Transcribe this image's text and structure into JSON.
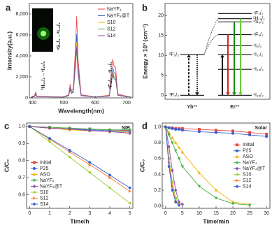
{
  "chart_data": [
    {
      "type": "line",
      "label": "a",
      "x_label": "Wavelength(nm)",
      "y_label": "Intensity(a.u.)",
      "legend": "upper right",
      "x": [
        395,
        406,
        410,
        414,
        500,
        515,
        520,
        524,
        530,
        537,
        541,
        545,
        555,
        600,
        645,
        652,
        656,
        660,
        665,
        672,
        700,
        715
      ],
      "xlim": [
        390,
        720
      ],
      "xticks": [
        400,
        500,
        600,
        700
      ],
      "ylim": [
        0,
        9000
      ],
      "yticks": [
        0,
        {
          "value": 2000,
          "label": "2,000"
        },
        {
          "value": 4000,
          "label": "4,000"
        },
        {
          "value": 6000,
          "label": "6,000"
        },
        {
          "value": 8000,
          "label": "8,000"
        }
      ],
      "annotations": [
        "⁴S₃/₂→⁴I₁₅/₂",
        "²H₁₁/₂→⁴I₁₅/₂",
        "⁴F₉/₂→⁴I₁₅/₂"
      ],
      "series": [
        {
          "name": "NaYF₄",
          "color": "#e8403a",
          "values": [
            80,
            200,
            550,
            150,
            100,
            300,
            1300,
            700,
            900,
            4800,
            7800,
            3800,
            300,
            100,
            250,
            2600,
            3700,
            3000,
            2900,
            400,
            150,
            100
          ]
        },
        {
          "name": "NaYF₄@T",
          "color": "#3a5fcd",
          "values": [
            70,
            150,
            420,
            120,
            90,
            250,
            1000,
            550,
            700,
            3800,
            6100,
            3000,
            250,
            90,
            200,
            2000,
            2900,
            2400,
            2300,
            300,
            120,
            90
          ]
        },
        {
          "name": "S10",
          "color": "#f0b400",
          "values": [
            60,
            130,
            360,
            110,
            80,
            220,
            850,
            480,
            600,
            3300,
            5300,
            2600,
            220,
            80,
            180,
            1700,
            2500,
            2100,
            2000,
            260,
            110,
            80
          ]
        },
        {
          "name": "S12",
          "color": "#3cb043",
          "values": [
            50,
            110,
            300,
            100,
            70,
            190,
            750,
            420,
            520,
            2900,
            4600,
            2300,
            200,
            70,
            160,
            1500,
            2200,
            1800,
            1750,
            230,
            100,
            70
          ]
        },
        {
          "name": "S14",
          "color": "#8e44ad",
          "values": [
            55,
            120,
            330,
            105,
            75,
            200,
            800,
            450,
            560,
            3100,
            4900,
            2450,
            210,
            75,
            170,
            1600,
            2350,
            1950,
            1850,
            240,
            105,
            75
          ]
        }
      ]
    },
    {
      "type": "energy-levels",
      "label": "b",
      "y_label": "Energy × 10³ (cm⁻¹)",
      "ylim": [
        -1,
        23
      ],
      "yticks": [
        0,
        5,
        10,
        15,
        20
      ],
      "ions": [
        {
          "name": "Yb³⁺",
          "levels": [
            {
              "label": "²F₇/₂",
              "energy": 0
            },
            {
              "label": "²F₅/₂",
              "energy": 10.2
            }
          ]
        },
        {
          "name": "Er³⁺",
          "levels": [
            {
              "label": "⁴I₁₅/₂",
              "energy": 0
            },
            {
              "label": "⁴I₁₃/₂",
              "energy": 6.5
            },
            {
              "label": "⁴I₁₁/₂",
              "energy": 10.2
            },
            {
              "label": "⁴I₉/₂",
              "energy": 12.4
            },
            {
              "label": "⁴F₉/₂",
              "energy": 15.2,
              "emission": "#e02020"
            },
            {
              "label": "⁴S₃/₂",
              "energy": 18.4,
              "emission": "#118a11"
            },
            {
              "label": "²H₁₁/₂",
              "energy": 19.2,
              "emission": "#66cc33"
            },
            {
              "label": "⁴F₇/₂",
              "energy": 20.5
            }
          ]
        }
      ]
    },
    {
      "type": "line",
      "label": "c",
      "title": "NIR",
      "x_label": "Time/h",
      "y_label": "C/C₀",
      "legend": "lower left",
      "x": [
        0,
        1,
        2,
        3,
        4,
        5
      ],
      "xlim": [
        -0.15,
        5.15
      ],
      "xticks": [
        0,
        1,
        2,
        3,
        4,
        5
      ],
      "ylim": [
        0.52,
        1.02
      ],
      "yticks": [
        0.6,
        0.7,
        0.8,
        0.9,
        {
          "value": 1,
          "label": "1.0"
        }
      ],
      "series": [
        {
          "name": "Initial",
          "color": "#e8403a",
          "marker": "square",
          "values": [
            1,
            0.995,
            0.99,
            0.985,
            0.98,
            0.975
          ]
        },
        {
          "name": "P25",
          "color": "#3a5fcd",
          "marker": "circle",
          "values": [
            1,
            0.99,
            0.985,
            0.98,
            0.975,
            0.97
          ]
        },
        {
          "name": "ASO",
          "color": "#f0b400",
          "marker": "triangle-up",
          "values": [
            1,
            0.99,
            0.98,
            0.975,
            0.97,
            0.965
          ]
        },
        {
          "name": "NaYF₄",
          "color": "#3cb043",
          "marker": "triangle-down",
          "values": [
            1,
            0.995,
            0.99,
            0.985,
            0.98,
            0.98
          ]
        },
        {
          "name": "NaYF₄@T",
          "color": "#8e44ad",
          "marker": "diamond",
          "values": [
            1,
            0.99,
            0.985,
            0.975,
            0.97,
            0.96
          ]
        },
        {
          "name": "S10",
          "color": "#9acd32",
          "marker": "triangle-left",
          "values": [
            1,
            0.91,
            0.82,
            0.73,
            0.64,
            0.55
          ]
        },
        {
          "name": "S12",
          "color": "#ff7f27",
          "marker": "triangle-right",
          "values": [
            1,
            0.925,
            0.85,
            0.775,
            0.7,
            0.62
          ]
        },
        {
          "name": "S14",
          "color": "#3060d0",
          "marker": "hexagon",
          "values": [
            1,
            0.93,
            0.86,
            0.79,
            0.715,
            0.64
          ]
        }
      ]
    },
    {
      "type": "line",
      "label": "d",
      "title": "Solar",
      "x_label": "Time/min",
      "y_label": "C/C₀",
      "legend": "center right",
      "x": [
        0,
        1,
        2,
        3,
        4,
        5,
        10,
        15,
        20,
        25,
        30
      ],
      "xlim": [
        -1,
        31
      ],
      "xticks": [
        0,
        5,
        10,
        15,
        20,
        25,
        30
      ],
      "ylim": [
        -0.03,
        1.05
      ],
      "yticks": [
        {
          "value": 0,
          "label": "0.0"
        },
        0.2,
        0.4,
        0.6,
        0.8,
        {
          "value": 1,
          "label": "1.0"
        }
      ],
      "series": [
        {
          "name": "Initial",
          "color": "#e8403a",
          "marker": "square",
          "values": [
            1,
            0.99,
            0.99,
            0.98,
            0.98,
            0.98,
            0.97,
            0.96,
            0.95,
            0.93,
            0.91
          ]
        },
        {
          "name": "P25",
          "color": "#3a5fcd",
          "marker": "circle",
          "values": [
            1,
            0.99,
            0.98,
            0.97,
            0.97,
            0.96,
            0.94,
            0.93,
            0.92,
            0.9,
            0.88
          ]
        },
        {
          "name": "ASO",
          "color": "#f0b400",
          "marker": "triangle-up",
          "values": [
            1,
            0.93,
            0.86,
            0.8,
            0.74,
            0.68,
            0.42,
            0.2,
            0.05,
            0.02,
            null
          ]
        },
        {
          "name": "NaYF₄",
          "color": "#3cb043",
          "marker": "triangle-down",
          "values": [
            1,
            0.9,
            0.8,
            0.7,
            0.6,
            0.5,
            0.25,
            0.1,
            0.03,
            0.01,
            null
          ]
        },
        {
          "name": "NaYF₄@T",
          "color": "#8e44ad",
          "marker": "diamond",
          "values": [
            1,
            0.75,
            0.45,
            0.2,
            0.05,
            0.02,
            null,
            null,
            null,
            null,
            null
          ]
        },
        {
          "name": "S10",
          "color": "#9acd32",
          "marker": "triangle-left",
          "values": [
            1,
            0.6,
            0.3,
            0.1,
            0.03,
            null,
            null,
            null,
            null,
            null,
            null
          ]
        },
        {
          "name": "S12",
          "color": "#ff7f27",
          "marker": "triangle-right",
          "values": [
            1,
            0.55,
            0.25,
            0.06,
            0.02,
            null,
            null,
            null,
            null,
            null,
            null
          ]
        },
        {
          "name": "S14",
          "color": "#3060d0",
          "marker": "hexagon",
          "values": [
            1,
            0.5,
            0.2,
            0.05,
            0.01,
            null,
            null,
            null,
            null,
            null,
            null
          ]
        }
      ]
    }
  ]
}
